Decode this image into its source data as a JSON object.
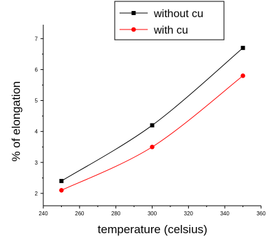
{
  "chart_data": {
    "type": "line",
    "xlabel": "temperature (celsius)",
    "ylabel": "% of elongation",
    "xlim": [
      240,
      360
    ],
    "ylim": [
      1.6,
      7.45
    ],
    "x_ticks": [
      240,
      260,
      280,
      300,
      320,
      340,
      360
    ],
    "y_ticks": [
      2,
      3,
      4,
      5,
      6,
      7
    ],
    "grid": false,
    "legend_position": "top-right",
    "series": [
      {
        "name": "without cu",
        "color": "#000000",
        "marker": "square",
        "x": [
          250,
          300,
          350
        ],
        "y": [
          2.4,
          4.2,
          6.7
        ]
      },
      {
        "name": "with cu",
        "color": "#ff0000",
        "marker": "circle",
        "x": [
          250,
          300,
          350
        ],
        "y": [
          2.1,
          3.5,
          5.8
        ]
      }
    ]
  }
}
